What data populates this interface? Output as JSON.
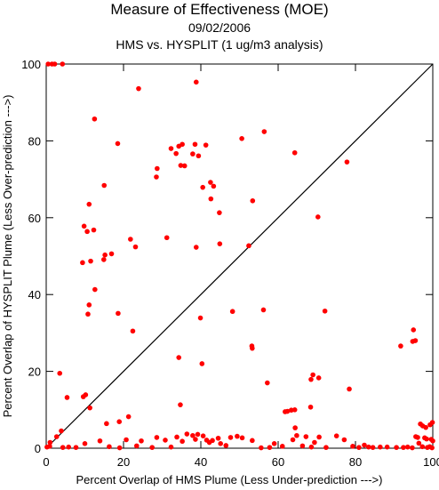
{
  "chart_data": {
    "type": "scatter",
    "title": "Measure of Effectiveness (MOE)",
    "date": "09/02/2006",
    "subtitle": "HMS vs. HYSPLIT  (1 ug/m3 analysis)",
    "xlabel": "Percent Overlap of HMS Plume (Less Under-prediction --->)",
    "ylabel": "Percent Overlap of HYSPLIT Plume (Less Over-prediction --->)",
    "xlim": [
      0,
      100
    ],
    "ylim": [
      0,
      100
    ],
    "xticks": [
      0,
      20,
      40,
      60,
      80,
      100
    ],
    "yticks": [
      0,
      20,
      40,
      60,
      80,
      100
    ],
    "xtick_labels": [
      "0",
      "20",
      "40",
      "60",
      "80",
      "100"
    ],
    "ytick_labels": [
      "0",
      "20",
      "40",
      "60",
      "80",
      "100"
    ],
    "reference_line": "y = x",
    "marker_color": "#ff0000",
    "line_color": "#000000",
    "grid": false,
    "points": [
      [
        0.5,
        100
      ],
      [
        1.5,
        100
      ],
      [
        2.2,
        100
      ],
      [
        4.2,
        100
      ],
      [
        23.9,
        93.6
      ],
      [
        38.8,
        95.3
      ],
      [
        12.5,
        85.7
      ],
      [
        18.5,
        79.3
      ],
      [
        50.6,
        80.6
      ],
      [
        56.4,
        82.4
      ],
      [
        64.3,
        76.9
      ],
      [
        77.8,
        74.5
      ],
      [
        32.3,
        78
      ],
      [
        34.3,
        78.6
      ],
      [
        35.2,
        79.1
      ],
      [
        33.6,
        76.7
      ],
      [
        37.9,
        76.6
      ],
      [
        38.5,
        79.1
      ],
      [
        41.3,
        78.9
      ],
      [
        39.4,
        76.1
      ],
      [
        28.7,
        72.8
      ],
      [
        28.5,
        70.6
      ],
      [
        34.8,
        73.6
      ],
      [
        35.8,
        73.5
      ],
      [
        42.5,
        69.2
      ],
      [
        43.3,
        68.2
      ],
      [
        40.5,
        67.9
      ],
      [
        42.6,
        64.9
      ],
      [
        44.8,
        61.3
      ],
      [
        53.4,
        64.4
      ],
      [
        70.3,
        60.2
      ],
      [
        15,
        68.4
      ],
      [
        11.1,
        63.5
      ],
      [
        9.8,
        57.8
      ],
      [
        10.6,
        56.4
      ],
      [
        12.3,
        56.8
      ],
      [
        21.8,
        54.4
      ],
      [
        23.1,
        52.4
      ],
      [
        31.2,
        54.8
      ],
      [
        38.8,
        52.3
      ],
      [
        44.9,
        53.2
      ],
      [
        52.4,
        52.7
      ],
      [
        15.2,
        50.3
      ],
      [
        16.9,
        50.6
      ],
      [
        9.4,
        48.3
      ],
      [
        11.5,
        48.7
      ],
      [
        14.9,
        49.1
      ],
      [
        12.6,
        41.3
      ],
      [
        11.1,
        37.3
      ],
      [
        10.8,
        34.9
      ],
      [
        18.6,
        35.1
      ],
      [
        39.9,
        33.9
      ],
      [
        48.2,
        35.6
      ],
      [
        56.2,
        36
      ],
      [
        72.1,
        35.7
      ],
      [
        22.4,
        30.5
      ],
      [
        34.3,
        23.6
      ],
      [
        40.3,
        22
      ],
      [
        53.2,
        26.6
      ],
      [
        53.3,
        26
      ],
      [
        95,
        30.8
      ],
      [
        94.8,
        27.8
      ],
      [
        95.5,
        28
      ],
      [
        91.7,
        26.6
      ],
      [
        3.5,
        19.5
      ],
      [
        9.6,
        13.4
      ],
      [
        10.2,
        13.9
      ],
      [
        5.4,
        13.2
      ],
      [
        11.3,
        10.5
      ],
      [
        15.6,
        6.4
      ],
      [
        18.9,
        6.9
      ],
      [
        21.3,
        8.2
      ],
      [
        34.7,
        11.3
      ],
      [
        57.2,
        17
      ],
      [
        68.5,
        17.9
      ],
      [
        69,
        19.1
      ],
      [
        70.5,
        18.3
      ],
      [
        78.4,
        15.4
      ],
      [
        61.8,
        9.5
      ],
      [
        62.4,
        9.6
      ],
      [
        63.4,
        9.9
      ],
      [
        64.3,
        10
      ],
      [
        68.4,
        10.7
      ],
      [
        64.4,
        5.3
      ],
      [
        1,
        1.5
      ],
      [
        2.7,
        3
      ],
      [
        3.9,
        4.5
      ],
      [
        0.2,
        0.3
      ],
      [
        0.9,
        0.5
      ],
      [
        4.3,
        0.2
      ],
      [
        5.8,
        0.3
      ],
      [
        7.7,
        0.2
      ],
      [
        10,
        1.2
      ],
      [
        13.9,
        1.9
      ],
      [
        16.3,
        0.4
      ],
      [
        19,
        0.1
      ],
      [
        20.7,
        2.2
      ],
      [
        23.4,
        0.6
      ],
      [
        24.6,
        1.9
      ],
      [
        27.4,
        0.2
      ],
      [
        28.6,
        2.8
      ],
      [
        30.8,
        2.1
      ],
      [
        32.3,
        0.3
      ],
      [
        33.8,
        2.9
      ],
      [
        35.2,
        1.8
      ],
      [
        36.4,
        3.7
      ],
      [
        37.9,
        3.3
      ],
      [
        38.6,
        2.3
      ],
      [
        39.2,
        3.6
      ],
      [
        40.6,
        3.2
      ],
      [
        41.5,
        2.1
      ],
      [
        42.2,
        1.5
      ],
      [
        43,
        2
      ],
      [
        44.5,
        2.6
      ],
      [
        45.1,
        1.2
      ],
      [
        46.5,
        0.7
      ],
      [
        47.7,
        2.8
      ],
      [
        49.4,
        3.1
      ],
      [
        50.7,
        2.7
      ],
      [
        53.3,
        2
      ],
      [
        55.6,
        0.1
      ],
      [
        57.8,
        0.2
      ],
      [
        59,
        1.2
      ],
      [
        61.1,
        0.5
      ],
      [
        63.8,
        2.2
      ],
      [
        64.8,
        3.3
      ],
      [
        66.3,
        0.6
      ],
      [
        67.2,
        3
      ],
      [
        68.6,
        0.3
      ],
      [
        69.4,
        1.5
      ],
      [
        70.6,
        2.9
      ],
      [
        72.4,
        0.2
      ],
      [
        75.1,
        3.2
      ],
      [
        77.1,
        2.2
      ],
      [
        79.3,
        0.5
      ],
      [
        80.9,
        0.2
      ],
      [
        82.3,
        0.8
      ],
      [
        83.4,
        0.3
      ],
      [
        84.5,
        0.2
      ],
      [
        86.4,
        0.3
      ],
      [
        88.2,
        0.3
      ],
      [
        90.6,
        0.2
      ],
      [
        92.4,
        0.2
      ],
      [
        93.5,
        0.3
      ],
      [
        94.7,
        0.1
      ],
      [
        95.6,
        3
      ],
      [
        96.1,
        2.8
      ],
      [
        96.8,
        6.3
      ],
      [
        97.4,
        5.8
      ],
      [
        98.2,
        5.4
      ],
      [
        99.3,
        6.1
      ],
      [
        99.9,
        6.7
      ],
      [
        97.9,
        2.7
      ],
      [
        98.4,
        2.4
      ],
      [
        99.6,
        2.3
      ],
      [
        100,
        1.9
      ],
      [
        97.3,
        0.4
      ],
      [
        98.6,
        0.2
      ],
      [
        99.2,
        0.4
      ],
      [
        99.8,
        0.1
      ],
      [
        96.4,
        1.3
      ]
    ]
  }
}
